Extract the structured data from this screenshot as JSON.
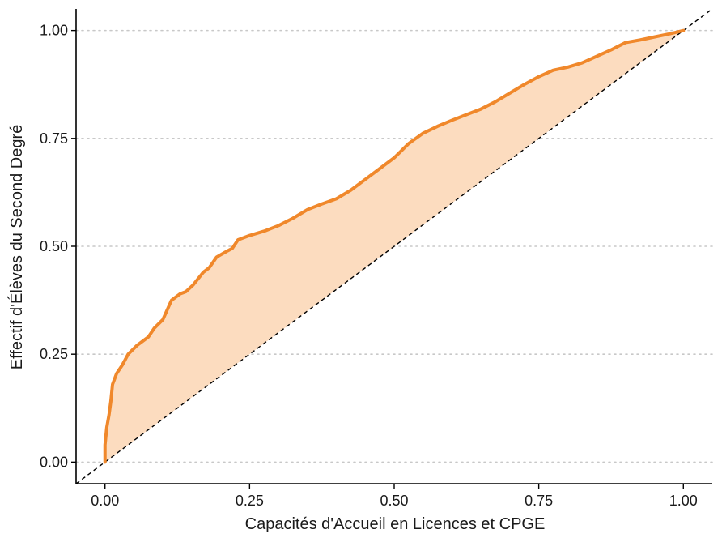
{
  "chart_data": {
    "type": "area",
    "title": "",
    "xlabel": "Capacités d'Accueil en Licences et CPGE",
    "ylabel": "Effectif d'Élèves du Second Degré",
    "xlim": [
      -0.05,
      1.05
    ],
    "ylim": [
      -0.05,
      1.05
    ],
    "x_ticks": [
      0,
      0.25,
      0.5,
      0.75,
      1
    ],
    "y_ticks": [
      0,
      0.25,
      0.5,
      0.75,
      1
    ],
    "x_tick_labels": [
      "0.00",
      "0.25",
      "0.50",
      "0.75",
      "1.00"
    ],
    "y_tick_labels": [
      "0.00",
      "0.25",
      "0.50",
      "0.75",
      "1.00"
    ],
    "grid": "horizontal dotted at y ticks",
    "reference_line": "diagonal y = x (dashed)",
    "colors": {
      "curve": "#f0882b",
      "fill": "#fcdcbf",
      "reference": "#000000",
      "grid": "#c8c8c8"
    },
    "series": [
      {
        "points": [
          [
            0.0,
            0.0
          ],
          [
            0.0,
            0.04
          ],
          [
            0.003,
            0.08
          ],
          [
            0.007,
            0.11
          ],
          [
            0.01,
            0.14
          ],
          [
            0.013,
            0.18
          ],
          [
            0.02,
            0.205
          ],
          [
            0.03,
            0.225
          ],
          [
            0.04,
            0.25
          ],
          [
            0.055,
            0.27
          ],
          [
            0.075,
            0.29
          ],
          [
            0.085,
            0.31
          ],
          [
            0.1,
            0.33
          ],
          [
            0.115,
            0.375
          ],
          [
            0.13,
            0.39
          ],
          [
            0.14,
            0.395
          ],
          [
            0.152,
            0.41
          ],
          [
            0.17,
            0.44
          ],
          [
            0.18,
            0.45
          ],
          [
            0.193,
            0.475
          ],
          [
            0.21,
            0.488
          ],
          [
            0.22,
            0.495
          ],
          [
            0.23,
            0.515
          ],
          [
            0.25,
            0.525
          ],
          [
            0.275,
            0.535
          ],
          [
            0.3,
            0.548
          ],
          [
            0.325,
            0.565
          ],
          [
            0.35,
            0.585
          ],
          [
            0.375,
            0.598
          ],
          [
            0.4,
            0.61
          ],
          [
            0.425,
            0.63
          ],
          [
            0.45,
            0.655
          ],
          [
            0.475,
            0.68
          ],
          [
            0.5,
            0.705
          ],
          [
            0.525,
            0.738
          ],
          [
            0.55,
            0.762
          ],
          [
            0.575,
            0.778
          ],
          [
            0.6,
            0.792
          ],
          [
            0.625,
            0.805
          ],
          [
            0.65,
            0.818
          ],
          [
            0.675,
            0.835
          ],
          [
            0.7,
            0.855
          ],
          [
            0.725,
            0.875
          ],
          [
            0.75,
            0.893
          ],
          [
            0.775,
            0.908
          ],
          [
            0.8,
            0.915
          ],
          [
            0.825,
            0.925
          ],
          [
            0.85,
            0.94
          ],
          [
            0.875,
            0.955
          ],
          [
            0.9,
            0.972
          ],
          [
            0.925,
            0.978
          ],
          [
            0.95,
            0.985
          ],
          [
            0.975,
            0.992
          ],
          [
            1.0,
            1.0
          ]
        ]
      }
    ]
  }
}
